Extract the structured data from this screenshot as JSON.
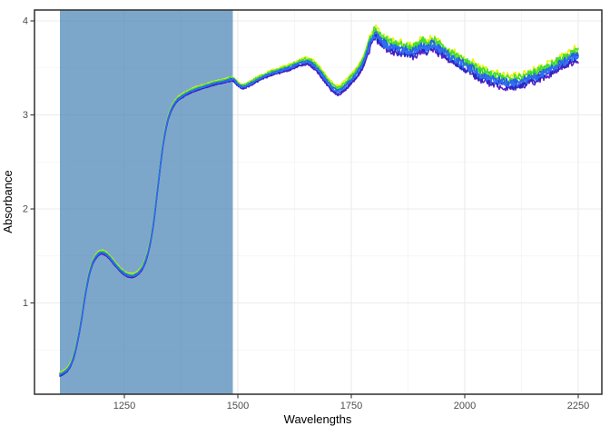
{
  "chart_data": {
    "type": "line",
    "title": "",
    "xlabel": "Wavelengths",
    "ylabel": "Absorbance",
    "xlim": [
      1052,
      2302
    ],
    "ylim": [
      0.029,
      4.116
    ],
    "x_ticks": [
      1250,
      1500,
      1750,
      2000,
      2250
    ],
    "y_ticks": [
      1,
      2,
      3,
      4
    ],
    "x_minor_ticks": [
      1125,
      1375,
      1625,
      1875,
      2125
    ],
    "y_minor_ticks": [
      0.5,
      1.5,
      2.5,
      3.5
    ],
    "grid": true,
    "legend_position": "none",
    "highlight_region": {
      "x_from": 1108,
      "x_to": 1489,
      "fill": "#4682B4",
      "opacity": 0.7
    },
    "mean_spectrum": {
      "wavelength": [
        1108,
        1116,
        1124,
        1132,
        1140,
        1148,
        1156,
        1164,
        1172,
        1180,
        1190,
        1200,
        1210,
        1220,
        1232,
        1244,
        1256,
        1266,
        1274,
        1284,
        1294,
        1304,
        1314,
        1324,
        1334,
        1344,
        1354,
        1366,
        1380,
        1395,
        1410,
        1430,
        1450,
        1470,
        1489,
        1500,
        1510,
        1522,
        1536,
        1552,
        1570,
        1590,
        1610,
        1630,
        1648,
        1660,
        1672,
        1686,
        1700,
        1712,
        1722,
        1734,
        1748,
        1762,
        1775,
        1788,
        1796,
        1803,
        1812,
        1822,
        1835,
        1850,
        1865,
        1880,
        1895,
        1908,
        1918,
        1928,
        1940,
        1955,
        1970,
        1985,
        2000,
        2015,
        2030,
        2045,
        2060,
        2075,
        2090,
        2105,
        2120,
        2135,
        2150,
        2165,
        2180,
        2195,
        2210,
        2225,
        2240,
        2250
      ],
      "absorbance": [
        0.24,
        0.26,
        0.29,
        0.35,
        0.46,
        0.63,
        0.85,
        1.1,
        1.3,
        1.43,
        1.51,
        1.54,
        1.52,
        1.47,
        1.4,
        1.34,
        1.3,
        1.29,
        1.3,
        1.34,
        1.42,
        1.58,
        1.85,
        2.25,
        2.65,
        2.92,
        3.07,
        3.16,
        3.21,
        3.25,
        3.28,
        3.31,
        3.34,
        3.36,
        3.38,
        3.33,
        3.3,
        3.32,
        3.36,
        3.4,
        3.44,
        3.47,
        3.5,
        3.54,
        3.57,
        3.56,
        3.51,
        3.43,
        3.34,
        3.28,
        3.26,
        3.3,
        3.37,
        3.45,
        3.55,
        3.72,
        3.82,
        3.87,
        3.81,
        3.77,
        3.74,
        3.72,
        3.7,
        3.68,
        3.7,
        3.75,
        3.71,
        3.76,
        3.72,
        3.67,
        3.62,
        3.58,
        3.54,
        3.5,
        3.45,
        3.42,
        3.39,
        3.37,
        3.35,
        3.35,
        3.36,
        3.38,
        3.41,
        3.44,
        3.47,
        3.51,
        3.55,
        3.59,
        3.63,
        3.65
      ]
    },
    "series": [
      {
        "name": "spectrum-yellow",
        "color": "#E8F307",
        "offset": 0.022,
        "seed": 11
      },
      {
        "name": "spectrum-green-2",
        "color": "#35C92F",
        "offset": 0.007,
        "seed": 23
      },
      {
        "name": "spectrum-green",
        "color": "#3FE03C",
        "offset": 0.014,
        "seed": 37
      },
      {
        "name": "spectrum-violet",
        "color": "#5B1FC4",
        "offset": -0.02,
        "seed": 41
      },
      {
        "name": "spectrum-navy",
        "color": "#2727C3",
        "offset": -0.014,
        "seed": 53
      },
      {
        "name": "spectrum-blue-2",
        "color": "#2A5CEC",
        "offset": 0.0,
        "seed": 67
      },
      {
        "name": "spectrum-blue",
        "color": "#2E6FF2",
        "offset": -0.006,
        "seed": 79
      }
    ],
    "noise_model": {
      "smooth_region_sd": 0.003,
      "mid_region_sd": 0.011,
      "noisy_region_sd": 0.04,
      "mid_region_start": 1480,
      "noisy_region_start": 1788,
      "offset_spread_max_multiplier": 3
    }
  },
  "style": {
    "panel_border_color": "#2E2E2E",
    "grid_major_color": "#EBEBEB",
    "grid_minor_color": "#F3F3F3",
    "tick_color": "#333333",
    "tick_label_color": "#4d4d4d",
    "axis_title_color": "#000000",
    "background": "#FFFFFF"
  }
}
